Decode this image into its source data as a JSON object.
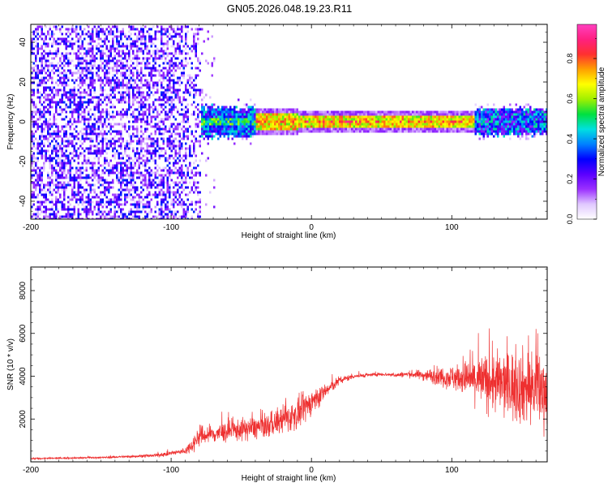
{
  "figure_title": "GN05.2026.048.19.23.R11",
  "chart_data": [
    {
      "type": "heatmap",
      "xlabel": "Height of straight line (km)",
      "ylabel": "Frequency (Hz)",
      "xlim": [
        -200,
        168
      ],
      "ylim": [
        -49,
        49
      ],
      "xticks": [
        -200,
        -100,
        0,
        100
      ],
      "yticks": [
        -40,
        -20,
        0,
        20,
        40
      ],
      "colorbar": {
        "label": "Normalized spectral amplitude",
        "range": [
          0.0,
          0.97
        ],
        "ticks": [
          0.0,
          0.2,
          0.4,
          0.6,
          0.8
        ],
        "tick_labels": [
          "0.0",
          "0.2",
          "0.4",
          "0.6",
          "0.8"
        ],
        "colors": [
          "#ffffff",
          "#e0c8ff",
          "#9b30ff",
          "#5a00ff",
          "#0000ff",
          "#0080ff",
          "#00e0e0",
          "#00e040",
          "#a0f000",
          "#ffff00",
          "#ffa000",
          "#ff3030",
          "#ff2080",
          "#ff40c0"
        ]
      },
      "regions": [
        {
          "name": "scattered noise",
          "x": [
            -200,
            -80
          ],
          "freq_range": [
            -49,
            49
          ],
          "amplitude": "0.05-0.3"
        },
        {
          "name": "broadband onset",
          "x": [
            -100,
            -40
          ],
          "freq_range": [
            -8,
            8
          ],
          "amplitude": "0.2-0.5"
        },
        {
          "name": "narrow tone",
          "x": [
            -30,
            115
          ],
          "center_freq": 0,
          "amplitude": "0.5-0.97"
        },
        {
          "name": "widening band",
          "x": [
            115,
            168
          ],
          "freq_range": [
            -8,
            8
          ],
          "amplitude": "0.2-0.5"
        }
      ]
    },
    {
      "type": "line",
      "xlabel": "Height of straight line (km)",
      "ylabel": "SNR (10 * v/v)",
      "xlim": [
        -200,
        168
      ],
      "ylim": [
        0,
        9100
      ],
      "xticks": [
        -200,
        -100,
        0,
        100
      ],
      "yticks": [
        2000,
        4000,
        6000,
        8000
      ],
      "series": [
        {
          "name": "SNR",
          "color": "#ee3030",
          "envelope": {
            "x": [
              -200,
              -150,
              -110,
              -90,
              -85,
              -80,
              -70,
              -50,
              -30,
              -20,
              -10,
              0,
              10,
              20,
              30,
              50,
              60,
              70,
              80,
              90,
              100,
              110,
              120,
              130,
              140,
              150,
              160,
              168
            ],
            "mean": [
              150,
              200,
              300,
              500,
              800,
              1200,
              1300,
              1500,
              1700,
              2000,
              2200,
              2800,
              3300,
              3800,
              4000,
              4100,
              4050,
              4100,
              4050,
              4000,
              3950,
              3900,
              3800,
              3700,
              3600,
              3500,
              3400,
              3300
            ],
            "spread": [
              80,
              80,
              150,
              300,
              700,
              900,
              900,
              1000,
              1100,
              1300,
              1400,
              1200,
              700,
              400,
              200,
              150,
              200,
              300,
              500,
              800,
              1100,
              1600,
              2300,
              2800,
              3200,
              3400,
              3400,
              3200
            ]
          }
        }
      ]
    }
  ]
}
